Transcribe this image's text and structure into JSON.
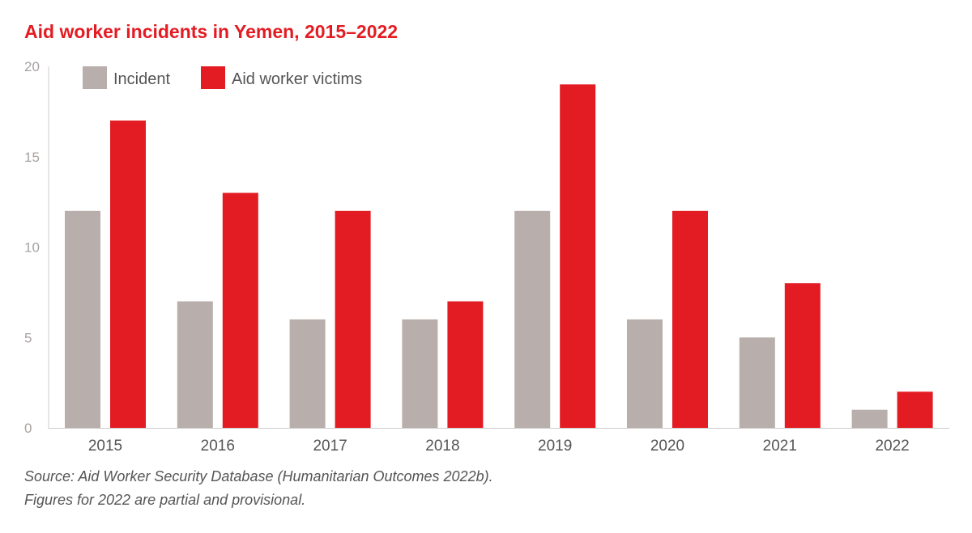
{
  "title": "Aid worker incidents in Yemen, 2015–2022",
  "colors": {
    "title": "#e31c23",
    "incident": "#b8aeab",
    "victims": "#e31c23",
    "axis": "#cccccc"
  },
  "footnotes": [
    "Source: Aid Worker Security Database (Humanitarian Outcomes 2022b).",
    "Figures for 2022 are partial and provisional."
  ],
  "chart_data": {
    "type": "bar",
    "title": "Aid worker incidents in Yemen, 2015–2022",
    "categories": [
      "2015",
      "2016",
      "2017",
      "2018",
      "2019",
      "2020",
      "2021",
      "2022"
    ],
    "series": [
      {
        "name": "Incident",
        "values": [
          12,
          7,
          6,
          6,
          12,
          6,
          5,
          1
        ]
      },
      {
        "name": "Aid worker victims",
        "values": [
          17,
          13,
          12,
          7,
          19,
          12,
          8,
          2
        ]
      }
    ],
    "yticks": [
      0,
      5,
      10,
      15,
      20
    ],
    "ylim": [
      0,
      20
    ],
    "xlabel": "",
    "ylabel": "",
    "grid": false,
    "legend": "top-left"
  }
}
